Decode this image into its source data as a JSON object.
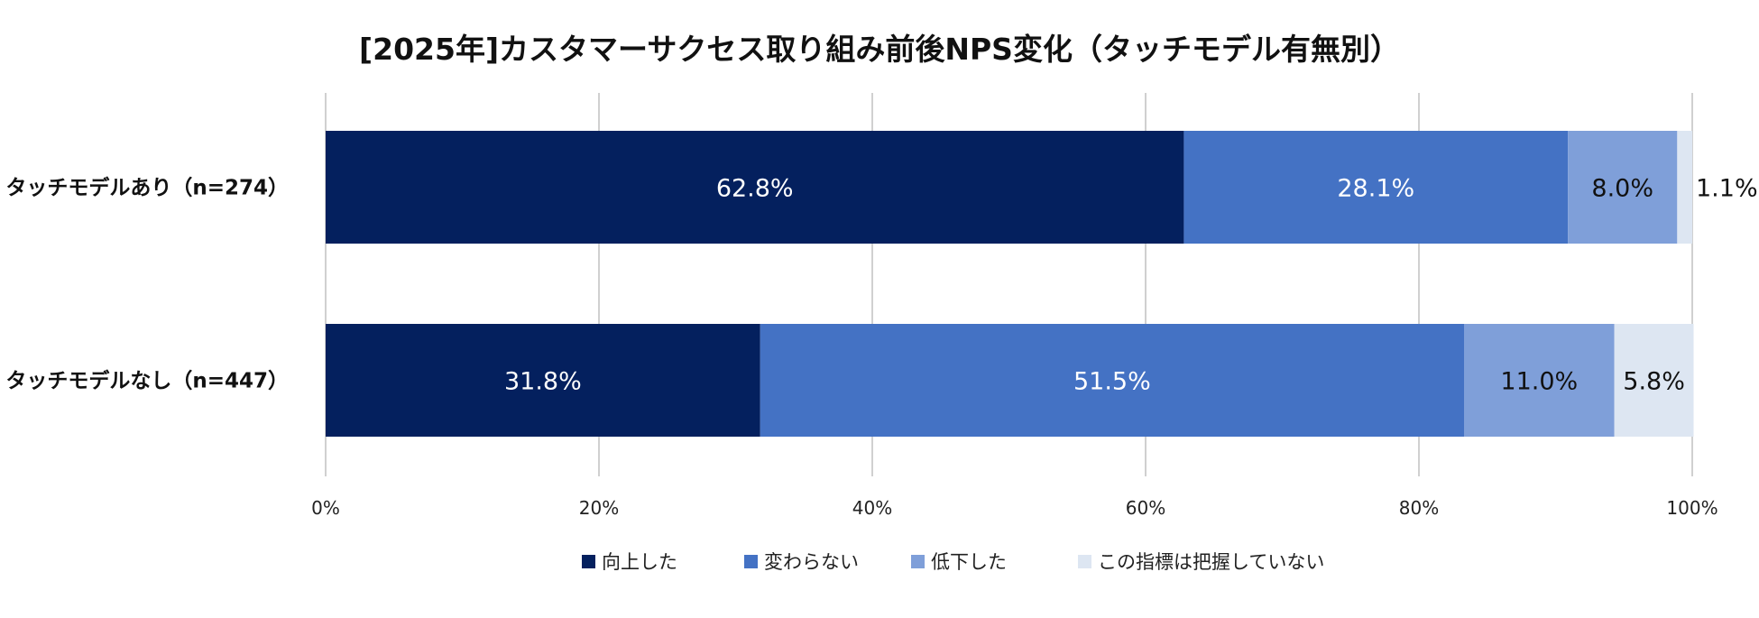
{
  "chart_data": {
    "type": "bar",
    "orientation": "horizontal",
    "stacked": true,
    "title": "[2025年]カスタマーサクセス取り組み前後NPS変化（タッチモデル有無別）",
    "categories": [
      "タッチモデルあり（n=274）",
      "タッチモデルなし（n=447）"
    ],
    "series": [
      {
        "name": "向上した",
        "values": [
          62.8,
          31.8
        ],
        "labels": [
          "62.8%",
          "31.8%"
        ],
        "color": "#04205e",
        "label_color": "#ffffff"
      },
      {
        "name": "変わらない",
        "values": [
          28.1,
          51.5
        ],
        "labels": [
          "28.1%",
          "51.5%"
        ],
        "color": "#4472c4",
        "label_color": "#ffffff"
      },
      {
        "name": "低下した",
        "values": [
          8.0,
          11.0
        ],
        "labels": [
          "8.0%",
          "11.0%"
        ],
        "color": "#7f9fd9",
        "label_color": "#111111"
      },
      {
        "name": "この指標は把握していない",
        "values": [
          1.1,
          5.8
        ],
        "labels": [
          "1.1%",
          "5.8%"
        ],
        "color": "#dde6f2",
        "label_color": "#111111"
      }
    ],
    "xlim": [
      0,
      100
    ],
    "x_ticks": [
      0,
      20,
      40,
      60,
      80,
      100
    ],
    "x_tick_labels": [
      "0%",
      "20%",
      "40%",
      "60%",
      "80%",
      "100%"
    ],
    "grid": true,
    "legend": "bottom"
  }
}
